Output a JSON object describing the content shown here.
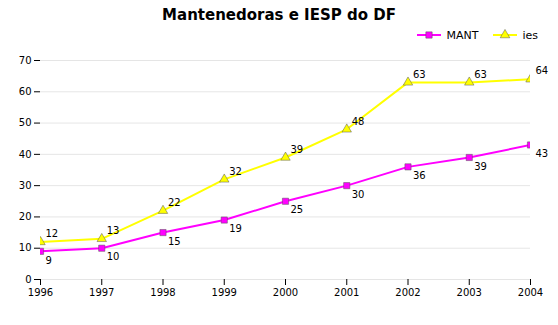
{
  "chart_data": {
    "type": "line",
    "title": "Mantenedoras e IESP do DF",
    "x": [
      1996,
      1997,
      1998,
      1999,
      2000,
      2001,
      2002,
      2003,
      2004
    ],
    "series": [
      {
        "name": "MANT",
        "color": "#ff00ff",
        "marker": "square",
        "values": [
          9,
          10,
          15,
          19,
          25,
          30,
          36,
          39,
          43
        ]
      },
      {
        "name": "ies",
        "color": "#ffff00",
        "marker": "triangle",
        "values": [
          12,
          13,
          22,
          32,
          39,
          48,
          63,
          63,
          64
        ]
      }
    ],
    "xlim": [
      1996,
      2004
    ],
    "xticks": [
      1996,
      1997,
      1998,
      1999,
      2000,
      2001,
      2002,
      2003,
      2004
    ],
    "ylim": [
      0,
      70
    ],
    "yticks": [
      0,
      10,
      20,
      30,
      40,
      50,
      60,
      70
    ],
    "grid": "y",
    "legend": "upper right",
    "data_labels": true
  }
}
